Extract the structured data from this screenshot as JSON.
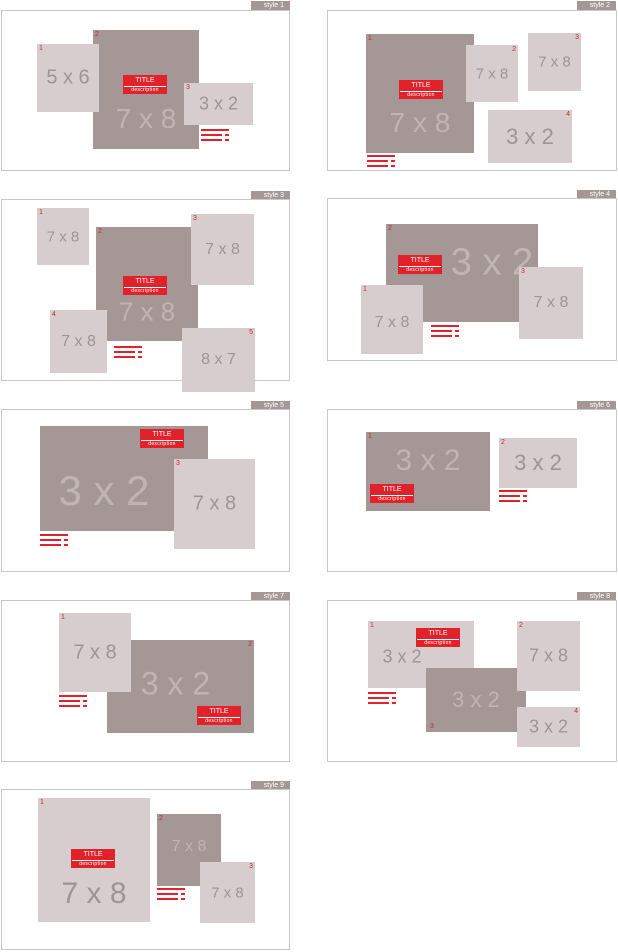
{
  "panels": [
    {
      "style": "style 1",
      "boxes": [
        {
          "n": "1",
          "size": "5 x 6"
        },
        {
          "n": "2",
          "size": "7 x 8"
        },
        {
          "n": "3",
          "size": "3 x 2"
        }
      ],
      "title": "TITLE",
      "description": "description"
    },
    {
      "style": "style 2",
      "boxes": [
        {
          "n": "1",
          "size": "7 x 8"
        },
        {
          "n": "2",
          "size": "7 x 8"
        },
        {
          "n": "3",
          "size": "7 x 8"
        },
        {
          "n": "4",
          "size": "3 x 2"
        }
      ],
      "title": "TITLE",
      "description": "description"
    },
    {
      "style": "style 3",
      "boxes": [
        {
          "n": "1",
          "size": "7 x 8"
        },
        {
          "n": "2",
          "size": "7 x 8"
        },
        {
          "n": "3",
          "size": "7 x 8"
        },
        {
          "n": "4",
          "size": "7 x 8"
        },
        {
          "n": "5",
          "size": "8 x 7"
        }
      ],
      "title": "TITLE",
      "description": "description"
    },
    {
      "style": "style 4",
      "boxes": [
        {
          "n": "1",
          "size": "7 x 8"
        },
        {
          "n": "2",
          "size": "3 x 2"
        },
        {
          "n": "3",
          "size": "7 x 8"
        }
      ],
      "title": "TITLE",
      "description": "description"
    },
    {
      "style": "style 5",
      "boxes": [
        {
          "n": "",
          "size": "3 x 2"
        },
        {
          "n": "3",
          "size": "7 x 8"
        }
      ],
      "title": "TITLE",
      "description": "description"
    },
    {
      "style": "style 6",
      "boxes": [
        {
          "n": "1",
          "size": "3 x 2"
        },
        {
          "n": "2",
          "size": "3 x 2"
        }
      ],
      "title": "TITLE",
      "description": "description"
    },
    {
      "style": "style 7",
      "boxes": [
        {
          "n": "1",
          "size": "7 x 8"
        },
        {
          "n": "2",
          "size": "3 x 2"
        }
      ],
      "title": "TITLE",
      "description": "description"
    },
    {
      "style": "style 8",
      "boxes": [
        {
          "n": "1",
          "size": "3 x 2"
        },
        {
          "n": "2",
          "size": "7 x 8"
        },
        {
          "n": "3",
          "size": "3 x 2"
        },
        {
          "n": "4",
          "size": "3 x 2"
        }
      ],
      "title": "TITLE",
      "description": "description"
    },
    {
      "style": "style 9",
      "boxes": [
        {
          "n": "1",
          "size": "7 x 8"
        },
        {
          "n": "2",
          "size": "7 x 8"
        },
        {
          "n": "3",
          "size": "7 x 8"
        }
      ],
      "title": "TITLE",
      "description": "description"
    }
  ],
  "colors": {
    "light": "#d7cdce",
    "dark": "#a49796",
    "accent": "#e2222a",
    "border": "#c8c8c8"
  }
}
